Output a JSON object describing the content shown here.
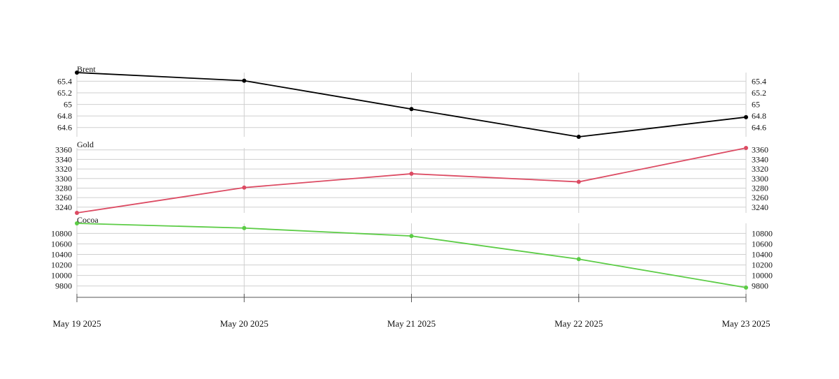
{
  "chart_data": [
    {
      "type": "line",
      "title": "Brent",
      "x": [
        "May 19 2025",
        "May 20 2025",
        "May 21 2025",
        "May 22 2025",
        "May 23 2025"
      ],
      "series": [
        {
          "name": "Brent",
          "values": [
            65.55,
            65.41,
            64.92,
            64.44,
            64.78
          ]
        }
      ],
      "yticks": [
        64.6,
        64.8,
        65.0,
        65.2,
        65.4
      ],
      "ylim": [
        64.44,
        65.55
      ],
      "y_axes": "left and right",
      "grid": true,
      "color": "#000000"
    },
    {
      "type": "line",
      "title": "Gold",
      "x": [
        "May 19 2025",
        "May 20 2025",
        "May 21 2025",
        "May 22 2025",
        "May 23 2025"
      ],
      "series": [
        {
          "name": "Gold",
          "values": [
            3228,
            3281,
            3310,
            3293,
            3364
          ]
        }
      ],
      "yticks": [
        3240,
        3260,
        3280,
        3300,
        3320,
        3340,
        3360
      ],
      "ylim": [
        3228,
        3364
      ],
      "y_axes": "left and right",
      "grid": true,
      "color": "#dc4b63"
    },
    {
      "type": "line",
      "title": "Cocoa",
      "x": [
        "May 19 2025",
        "May 20 2025",
        "May 21 2025",
        "May 22 2025",
        "May 23 2025"
      ],
      "series": [
        {
          "name": "Cocoa",
          "values": [
            10990,
            10900,
            10750,
            10310,
            9770
          ]
        }
      ],
      "yticks": [
        9800,
        10000,
        10200,
        10400,
        10600,
        10800
      ],
      "ylim": [
        9770,
        10990
      ],
      "y_axes": "left and right",
      "grid": true,
      "color": "#5ccc46"
    }
  ]
}
